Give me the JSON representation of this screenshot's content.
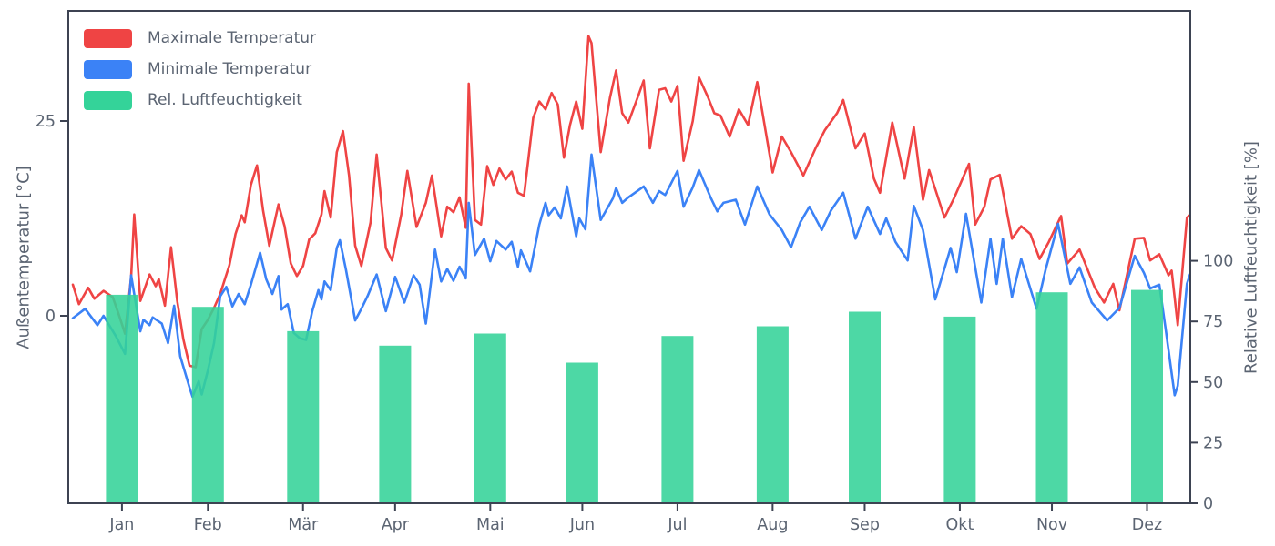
{
  "chart_data": {
    "type": "mixed",
    "title": "",
    "categories": [
      "Jan",
      "Feb",
      "Mär",
      "Apr",
      "Mai",
      "Jun",
      "Jul",
      "Aug",
      "Sep",
      "Okt",
      "Nov",
      "Dez"
    ],
    "left_axis": {
      "label": "Außentemperatur [°C]",
      "unit": "°C",
      "ticks": [
        0,
        25
      ],
      "range": [
        -24,
        39
      ]
    },
    "right_axis": {
      "label": "Relative Luftfeuchtigkeit [%]",
      "unit": "%",
      "ticks": [
        0,
        25,
        50,
        75,
        100
      ],
      "range": [
        0,
        203
      ]
    },
    "grid": false,
    "legend_position": "upper-left",
    "style": {
      "spine_color": "#3d4352",
      "text_color": "#5b6472",
      "background": "#ffffff"
    },
    "series": [
      {
        "name": "Maximale Temperatur",
        "type": "line",
        "color": "#ef4444",
        "axis": "left",
        "points": [
          [
            0,
            4.0
          ],
          [
            2,
            1.5
          ],
          [
            5,
            3.6
          ],
          [
            7,
            2.2
          ],
          [
            10,
            3.2
          ],
          [
            13,
            2.4
          ],
          [
            15,
            0.1
          ],
          [
            17,
            -2.3
          ],
          [
            19,
            5.0
          ],
          [
            20,
            13.0
          ],
          [
            22,
            1.9
          ],
          [
            25,
            5.3
          ],
          [
            27,
            3.8
          ],
          [
            28,
            4.7
          ],
          [
            30,
            1.3
          ],
          [
            32,
            8.8
          ],
          [
            34,
            1.9
          ],
          [
            36,
            -3.0
          ],
          [
            38,
            -6.4
          ],
          [
            40,
            -6.6
          ],
          [
            42,
            -1.7
          ],
          [
            44,
            -0.5
          ],
          [
            46,
            1.0
          ],
          [
            48,
            2.8
          ],
          [
            51,
            6.5
          ],
          [
            53,
            10.5
          ],
          [
            55,
            12.9
          ],
          [
            56,
            12.0
          ],
          [
            58,
            16.8
          ],
          [
            60,
            19.3
          ],
          [
            62,
            13.5
          ],
          [
            64,
            9.0
          ],
          [
            67,
            14.3
          ],
          [
            69,
            11.5
          ],
          [
            71,
            6.7
          ],
          [
            73,
            5.1
          ],
          [
            75,
            6.4
          ],
          [
            77,
            9.8
          ],
          [
            79,
            10.6
          ],
          [
            81,
            13.0
          ],
          [
            82,
            16.0
          ],
          [
            84,
            12.6
          ],
          [
            86,
            21.0
          ],
          [
            88,
            23.7
          ],
          [
            90,
            18.0
          ],
          [
            92,
            9.0
          ],
          [
            94,
            6.4
          ],
          [
            97,
            12.0
          ],
          [
            99,
            20.7
          ],
          [
            102,
            8.7
          ],
          [
            104,
            7.1
          ],
          [
            107,
            13.0
          ],
          [
            109,
            18.6
          ],
          [
            112,
            11.4
          ],
          [
            115,
            14.5
          ],
          [
            117,
            18.0
          ],
          [
            120,
            10.2
          ],
          [
            122,
            14.0
          ],
          [
            124,
            13.3
          ],
          [
            126,
            15.2
          ],
          [
            128,
            11.3
          ],
          [
            129,
            29.8
          ],
          [
            131,
            12.3
          ],
          [
            133,
            11.7
          ],
          [
            135,
            19.2
          ],
          [
            137,
            16.8
          ],
          [
            139,
            18.9
          ],
          [
            141,
            17.5
          ],
          [
            143,
            18.5
          ],
          [
            145,
            15.8
          ],
          [
            147,
            15.4
          ],
          [
            150,
            25.4
          ],
          [
            152,
            27.5
          ],
          [
            154,
            26.5
          ],
          [
            156,
            28.6
          ],
          [
            158,
            27.1
          ],
          [
            160,
            20.3
          ],
          [
            162,
            24.5
          ],
          [
            164,
            27.5
          ],
          [
            166,
            24.0
          ],
          [
            168,
            35.9
          ],
          [
            169,
            35.0
          ],
          [
            172,
            21.0
          ],
          [
            175,
            28.0
          ],
          [
            177,
            31.5
          ],
          [
            179,
            26.0
          ],
          [
            181,
            24.8
          ],
          [
            184,
            28.0
          ],
          [
            186,
            30.2
          ],
          [
            188,
            21.5
          ],
          [
            191,
            29.0
          ],
          [
            193,
            29.2
          ],
          [
            195,
            27.5
          ],
          [
            197,
            29.5
          ],
          [
            199,
            19.9
          ],
          [
            202,
            25.0
          ],
          [
            204,
            30.6
          ],
          [
            207,
            28.0
          ],
          [
            209,
            26.0
          ],
          [
            211,
            25.7
          ],
          [
            214,
            23.0
          ],
          [
            217,
            26.5
          ],
          [
            220,
            24.5
          ],
          [
            223,
            30.0
          ],
          [
            228,
            18.4
          ],
          [
            231,
            23.0
          ],
          [
            234,
            21.0
          ],
          [
            238,
            18.0
          ],
          [
            242,
            21.5
          ],
          [
            245,
            23.8
          ],
          [
            249,
            26.0
          ],
          [
            251,
            27.7
          ],
          [
            255,
            21.5
          ],
          [
            258,
            23.4
          ],
          [
            261,
            17.6
          ],
          [
            263,
            15.8
          ],
          [
            267,
            24.8
          ],
          [
            271,
            17.6
          ],
          [
            274,
            24.2
          ],
          [
            277,
            14.9
          ],
          [
            279,
            18.7
          ],
          [
            284,
            12.6
          ],
          [
            287,
            15.0
          ],
          [
            292,
            19.5
          ],
          [
            294,
            11.7
          ],
          [
            297,
            14.0
          ],
          [
            299,
            17.5
          ],
          [
            302,
            18.1
          ],
          [
            306,
            9.9
          ],
          [
            309,
            11.5
          ],
          [
            312,
            10.5
          ],
          [
            315,
            7.3
          ],
          [
            318,
            9.5
          ],
          [
            322,
            12.8
          ],
          [
            324,
            6.7
          ],
          [
            328,
            8.5
          ],
          [
            333,
            3.6
          ],
          [
            336,
            1.7
          ],
          [
            339,
            4.1
          ],
          [
            341,
            0.7
          ],
          [
            346,
            9.9
          ],
          [
            349,
            10.0
          ],
          [
            351,
            7.1
          ],
          [
            354,
            7.9
          ],
          [
            357,
            5.2
          ],
          [
            358,
            5.8
          ],
          [
            360,
            -1.2
          ],
          [
            363,
            12.6
          ],
          [
            364,
            12.9
          ]
        ]
      },
      {
        "name": "Minimale Temperatur",
        "type": "line",
        "color": "#3b82f6",
        "axis": "left",
        "points": [
          [
            0,
            -0.3
          ],
          [
            4,
            0.9
          ],
          [
            8,
            -1.2
          ],
          [
            10,
            0.0
          ],
          [
            14,
            -2.6
          ],
          [
            17,
            -4.9
          ],
          [
            19,
            5.2
          ],
          [
            22,
            -2.0
          ],
          [
            23,
            -0.5
          ],
          [
            25,
            -1.2
          ],
          [
            26,
            -0.2
          ],
          [
            29,
            -1.0
          ],
          [
            31,
            -3.5
          ],
          [
            33,
            1.3
          ],
          [
            35,
            -5.2
          ],
          [
            38,
            -9.2
          ],
          [
            39,
            -10.4
          ],
          [
            41,
            -8.4
          ],
          [
            42,
            -10.1
          ],
          [
            44,
            -7.0
          ],
          [
            46,
            -3.5
          ],
          [
            48,
            2.5
          ],
          [
            50,
            3.7
          ],
          [
            52,
            1.2
          ],
          [
            54,
            2.8
          ],
          [
            56,
            1.5
          ],
          [
            58,
            4.0
          ],
          [
            61,
            8.1
          ],
          [
            63,
            4.7
          ],
          [
            65,
            2.8
          ],
          [
            67,
            5.1
          ],
          [
            68,
            0.8
          ],
          [
            70,
            1.5
          ],
          [
            72,
            -2.2
          ],
          [
            74,
            -2.9
          ],
          [
            76,
            -3.1
          ],
          [
            78,
            0.6
          ],
          [
            80,
            3.3
          ],
          [
            81,
            2.1
          ],
          [
            82,
            4.4
          ],
          [
            84,
            3.3
          ],
          [
            86,
            8.7
          ],
          [
            87,
            9.7
          ],
          [
            89,
            5.9
          ],
          [
            92,
            -0.6
          ],
          [
            94,
            0.9
          ],
          [
            96,
            2.5
          ],
          [
            99,
            5.3
          ],
          [
            102,
            0.6
          ],
          [
            105,
            5.0
          ],
          [
            108,
            1.7
          ],
          [
            111,
            5.2
          ],
          [
            113,
            4.0
          ],
          [
            115,
            -1.0
          ],
          [
            118,
            8.5
          ],
          [
            120,
            4.4
          ],
          [
            122,
            6.0
          ],
          [
            124,
            4.5
          ],
          [
            126,
            6.3
          ],
          [
            128,
            4.8
          ],
          [
            129,
            14.5
          ],
          [
            131,
            7.8
          ],
          [
            134,
            9.9
          ],
          [
            136,
            7.0
          ],
          [
            138,
            9.6
          ],
          [
            141,
            8.5
          ],
          [
            143,
            9.5
          ],
          [
            145,
            6.3
          ],
          [
            146,
            8.4
          ],
          [
            149,
            5.7
          ],
          [
            152,
            11.7
          ],
          [
            154,
            14.5
          ],
          [
            155,
            12.9
          ],
          [
            157,
            13.9
          ],
          [
            159,
            12.5
          ],
          [
            161,
            16.6
          ],
          [
            164,
            10.2
          ],
          [
            165,
            12.5
          ],
          [
            167,
            11.1
          ],
          [
            169,
            20.7
          ],
          [
            172,
            12.3
          ],
          [
            176,
            15.1
          ],
          [
            177,
            16.4
          ],
          [
            179,
            14.5
          ],
          [
            181,
            15.2
          ],
          [
            186,
            16.6
          ],
          [
            189,
            14.5
          ],
          [
            191,
            16.0
          ],
          [
            193,
            15.5
          ],
          [
            197,
            18.6
          ],
          [
            199,
            14.0
          ],
          [
            202,
            16.5
          ],
          [
            204,
            18.7
          ],
          [
            208,
            15.0
          ],
          [
            210,
            13.4
          ],
          [
            212,
            14.5
          ],
          [
            216,
            14.9
          ],
          [
            219,
            11.7
          ],
          [
            223,
            16.6
          ],
          [
            227,
            13.0
          ],
          [
            231,
            11.0
          ],
          [
            234,
            8.8
          ],
          [
            237,
            12.0
          ],
          [
            240,
            14.0
          ],
          [
            244,
            11.0
          ],
          [
            247,
            13.5
          ],
          [
            251,
            15.8
          ],
          [
            255,
            9.9
          ],
          [
            257,
            12.0
          ],
          [
            259,
            14.0
          ],
          [
            263,
            10.5
          ],
          [
            265,
            12.5
          ],
          [
            268,
            9.5
          ],
          [
            272,
            7.1
          ],
          [
            274,
            14.1
          ],
          [
            277,
            11.0
          ],
          [
            281,
            2.1
          ],
          [
            286,
            8.7
          ],
          [
            288,
            5.6
          ],
          [
            291,
            13.1
          ],
          [
            296,
            1.7
          ],
          [
            299,
            9.9
          ],
          [
            301,
            4.1
          ],
          [
            303,
            9.9
          ],
          [
            306,
            2.4
          ],
          [
            309,
            7.3
          ],
          [
            314,
            0.9
          ],
          [
            317,
            6.0
          ],
          [
            321,
            11.8
          ],
          [
            325,
            4.1
          ],
          [
            328,
            6.2
          ],
          [
            332,
            1.7
          ],
          [
            337,
            -0.6
          ],
          [
            341,
            1.0
          ],
          [
            346,
            7.7
          ],
          [
            349,
            5.5
          ],
          [
            351,
            3.5
          ],
          [
            354,
            4.0
          ],
          [
            356,
            -1.5
          ],
          [
            359,
            -10.2
          ],
          [
            360,
            -9.0
          ],
          [
            363,
            4.1
          ],
          [
            364,
            5.3
          ]
        ]
      },
      {
        "name": "Rel. Luftfeuchtigkeit",
        "type": "bar",
        "color": "#34d399",
        "axis": "right",
        "values": [
          86,
          81,
          71,
          65,
          70,
          58,
          69,
          73,
          79,
          77,
          87,
          88
        ]
      }
    ]
  }
}
